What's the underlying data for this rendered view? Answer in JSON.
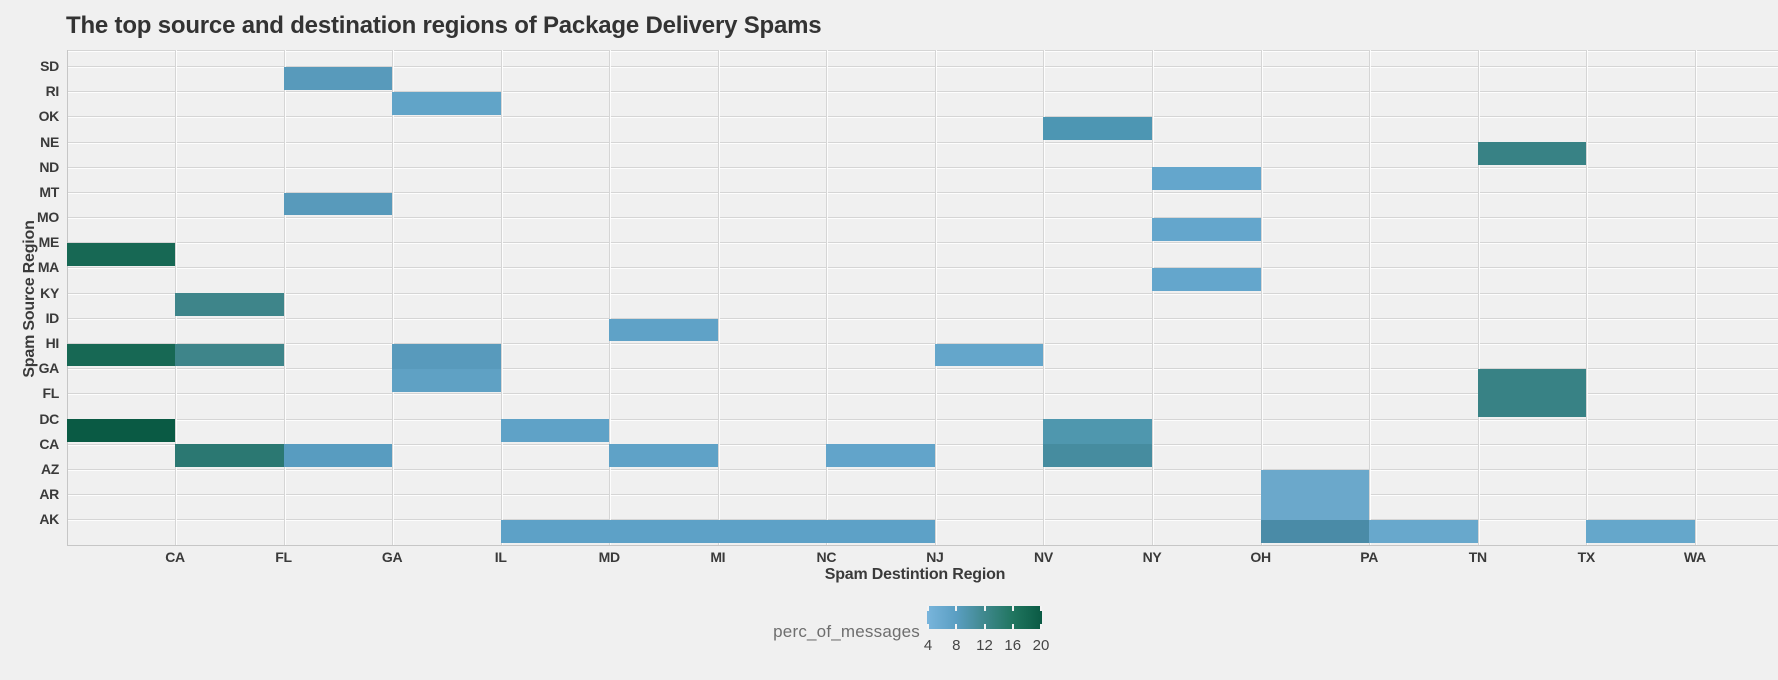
{
  "page": {
    "background": "#f0f0f0"
  },
  "chart_data": {
    "type": "heatmap",
    "title": "The top source and destination regions of Package Delivery Spams",
    "xlabel": "Spam Destintion Region",
    "ylabel": "Spam Source Region",
    "x_ticks": [
      "CA",
      "FL",
      "GA",
      "IL",
      "MD",
      "MI",
      "NC",
      "NJ",
      "NV",
      "NY",
      "OH",
      "PA",
      "TN",
      "TX",
      "WA"
    ],
    "y_ticks": [
      "SD",
      "RI",
      "OK",
      "NE",
      "ND",
      "MT",
      "MO",
      "ME",
      "MA",
      "KY",
      "ID",
      "HI",
      "GA",
      "FL",
      "DC",
      "CA",
      "AZ",
      "AR",
      "AK"
    ],
    "grid": true,
    "plot_bg": "#f0f0f0",
    "legend": {
      "label": "perc_of_messages",
      "ticks": [
        "4",
        "8",
        "12",
        "16",
        "20"
      ],
      "gradient_stops": [
        "#79b5dc",
        "#5b9fc3",
        "#3f888d",
        "#20755f",
        "#0a5a44"
      ],
      "position": "bottom"
    },
    "value_range": [
      4,
      20
    ],
    "cell_convention": "each cell spans the band between adjacent gridlines; row label at band top, column band given from left tick to right tick ('axis' = plot left edge)",
    "cells": [
      {
        "row": "SD",
        "row_idx": 0,
        "col_from": "FL",
        "col_to": "GA",
        "band_idx": 2,
        "value_approx": 8,
        "color": "#589abb"
      },
      {
        "row": "RI",
        "row_idx": 1,
        "col_from": "GA",
        "col_to": "IL",
        "band_idx": 3,
        "value_approx": 6,
        "color": "#61a4c8"
      },
      {
        "row": "OK",
        "row_idx": 2,
        "col_from": "NV",
        "col_to": "NY",
        "band_idx": 9,
        "value_approx": 9,
        "color": "#4d96b3"
      },
      {
        "row": "NE",
        "row_idx": 3,
        "col_from": "TN",
        "col_to": "TX",
        "band_idx": 13,
        "value_approx": 13,
        "color": "#388285"
      },
      {
        "row": "ND",
        "row_idx": 4,
        "col_from": "NY",
        "col_to": "OH",
        "band_idx": 10,
        "value_approx": 5,
        "color": "#64a6cc"
      },
      {
        "row": "MT",
        "row_idx": 5,
        "col_from": "FL",
        "col_to": "GA",
        "band_idx": 2,
        "value_approx": 8,
        "color": "#589abb"
      },
      {
        "row": "MO",
        "row_idx": 6,
        "col_from": "NY",
        "col_to": "OH",
        "band_idx": 10,
        "value_approx": 5,
        "color": "#64a6cc"
      },
      {
        "row": "ME",
        "row_idx": 7,
        "col_from": "axis",
        "col_to": "CA",
        "band_idx": 0,
        "value_approx": 18,
        "color": "#176854"
      },
      {
        "row": "MA",
        "row_idx": 8,
        "col_from": "NY",
        "col_to": "OH",
        "band_idx": 10,
        "value_approx": 5,
        "color": "#64a6cc"
      },
      {
        "row": "KY",
        "row_idx": 9,
        "col_from": "CA",
        "col_to": "FL",
        "band_idx": 1,
        "value_approx": 12,
        "color": "#3e858a"
      },
      {
        "row": "ID",
        "row_idx": 10,
        "col_from": "MD",
        "col_to": "MI",
        "band_idx": 5,
        "value_approx": 6,
        "color": "#5fa2c7"
      },
      {
        "row": "HI",
        "row_idx": 11,
        "col_from": "axis",
        "col_to": "CA",
        "band_idx": 0,
        "value_approx": 18,
        "color": "#176854"
      },
      {
        "row": "HI",
        "row_idx": 11,
        "col_from": "CA",
        "col_to": "FL",
        "band_idx": 1,
        "value_approx": 12,
        "color": "#3e858a"
      },
      {
        "row": "HI",
        "row_idx": 11,
        "col_from": "GA",
        "col_to": "IL",
        "band_idx": 3,
        "value_approx": 7,
        "color": "#589abc"
      },
      {
        "row": "HI",
        "row_idx": 11,
        "col_from": "NJ",
        "col_to": "NV",
        "band_idx": 8,
        "value_approx": 5,
        "color": "#64a6cb"
      },
      {
        "row": "GA",
        "row_idx": 12,
        "col_from": "GA",
        "col_to": "IL",
        "band_idx": 3,
        "value_approx": 6,
        "color": "#5fa1c4"
      },
      {
        "row": "GA",
        "row_idx": 12,
        "col_from": "TN",
        "col_to": "TX",
        "band_idx": 13,
        "value_approx": 13,
        "color": "#388285"
      },
      {
        "row": "FL",
        "row_idx": 13,
        "col_from": "TN",
        "col_to": "TX",
        "band_idx": 13,
        "value_approx": 13,
        "color": "#388285"
      },
      {
        "row": "DC",
        "row_idx": 14,
        "col_from": "axis",
        "col_to": "CA",
        "band_idx": 0,
        "value_approx": 20,
        "color": "#0a5a44"
      },
      {
        "row": "DC",
        "row_idx": 14,
        "col_from": "IL",
        "col_to": "MD",
        "band_idx": 4,
        "value_approx": 6,
        "color": "#5fa2c7"
      },
      {
        "row": "DC",
        "row_idx": 14,
        "col_from": "NV",
        "col_to": "NY",
        "band_idx": 9,
        "value_approx": 10,
        "color": "#4f97ae"
      },
      {
        "row": "CA",
        "row_idx": 15,
        "col_from": "CA",
        "col_to": "FL",
        "band_idx": 1,
        "value_approx": 15,
        "color": "#2b7872"
      },
      {
        "row": "CA",
        "row_idx": 15,
        "col_from": "FL",
        "col_to": "GA",
        "band_idx": 2,
        "value_approx": 7,
        "color": "#589cc0"
      },
      {
        "row": "CA",
        "row_idx": 15,
        "col_from": "MD",
        "col_to": "MI",
        "band_idx": 5,
        "value_approx": 6,
        "color": "#5fa2c7"
      },
      {
        "row": "CA",
        "row_idx": 15,
        "col_from": "NC",
        "col_to": "NJ",
        "band_idx": 7,
        "value_approx": 6,
        "color": "#62a4ca"
      },
      {
        "row": "CA",
        "row_idx": 15,
        "col_from": "NV",
        "col_to": "NY",
        "band_idx": 9,
        "value_approx": 11,
        "color": "#468c9f"
      },
      {
        "row": "AZ",
        "row_idx": 16,
        "col_from": "OH",
        "col_to": "PA",
        "band_idx": 11,
        "value_approx": 5,
        "color": "#6ba8cb"
      },
      {
        "row": "AR",
        "row_idx": 17,
        "col_from": "OH",
        "col_to": "PA",
        "band_idx": 11,
        "value_approx": 5,
        "color": "#6ba8cb"
      },
      {
        "row": "AK",
        "row_idx": 18,
        "col_from": "IL",
        "col_to": "MD",
        "band_idx": 4,
        "value_approx": 6,
        "color": "#5da1c7"
      },
      {
        "row": "AK",
        "row_idx": 18,
        "col_from": "MD",
        "col_to": "MI",
        "band_idx": 5,
        "value_approx": 6,
        "color": "#5da1c7"
      },
      {
        "row": "AK",
        "row_idx": 18,
        "col_from": "MI",
        "col_to": "NC",
        "band_idx": 6,
        "value_approx": 6,
        "color": "#5da1c7"
      },
      {
        "row": "AK",
        "row_idx": 18,
        "col_from": "NC",
        "col_to": "NJ",
        "band_idx": 7,
        "value_approx": 6,
        "color": "#5da1c7"
      },
      {
        "row": "AK",
        "row_idx": 18,
        "col_from": "OH",
        "col_to": "PA",
        "band_idx": 11,
        "value_approx": 10,
        "color": "#4a8ba7"
      },
      {
        "row": "AK",
        "row_idx": 18,
        "col_from": "PA",
        "col_to": "TN",
        "band_idx": 12,
        "value_approx": 5,
        "color": "#68a8cc"
      },
      {
        "row": "AK",
        "row_idx": 18,
        "col_from": "TX",
        "col_to": "WA",
        "band_idx": 14,
        "value_approx": 5,
        "color": "#65a7cb"
      }
    ]
  }
}
